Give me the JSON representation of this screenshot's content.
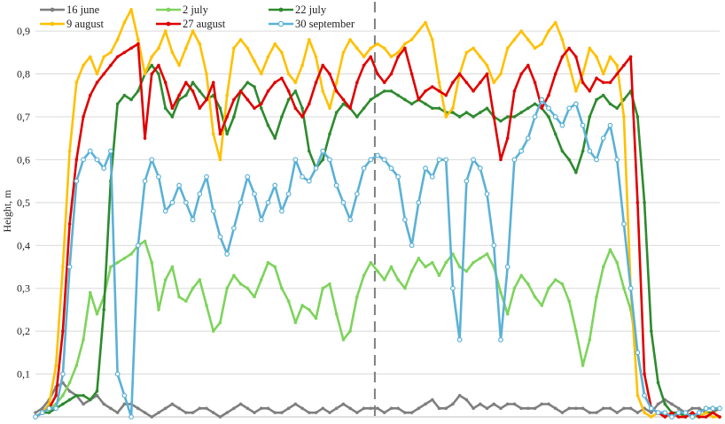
{
  "chart_data": {
    "type": "line",
    "ylabel": "Height, m",
    "xlabel": "",
    "title": "",
    "ylim": [
      0,
      0.96
    ],
    "y_ticks": [
      "0,1",
      "0,2",
      "0,3",
      "0,4",
      "0,5",
      "0,6",
      "0,7",
      "0,8",
      "0,9"
    ],
    "y_tick_values": [
      0.1,
      0.2,
      0.3,
      0.4,
      0.5,
      0.6,
      0.7,
      0.8,
      0.9
    ],
    "x_range": [
      0,
      100
    ],
    "grid": "horizontal",
    "legend_position": "top-left",
    "divider_x": 49.6,
    "series": [
      {
        "name": "16 june",
        "color": "#7f7f7f",
        "marker": "dot",
        "x": [
          0,
          1,
          2,
          3,
          4,
          5,
          6,
          7,
          8,
          9,
          10,
          11,
          12,
          13,
          14,
          15,
          16,
          17,
          18,
          19,
          20,
          21,
          22,
          23,
          24,
          25,
          26,
          27,
          28,
          29,
          30,
          31,
          32,
          33,
          34,
          35,
          36,
          37,
          38,
          39,
          40,
          41,
          42,
          43,
          44,
          45,
          46,
          47,
          48,
          49,
          50,
          51,
          52,
          53,
          54,
          55,
          56,
          57,
          58,
          59,
          60,
          61,
          62,
          63,
          64,
          65,
          66,
          67,
          68,
          69,
          70,
          71,
          72,
          73,
          74,
          75,
          76,
          77,
          78,
          79,
          80,
          81,
          82,
          83,
          84,
          85,
          86,
          87,
          88,
          89,
          90,
          91,
          92,
          93,
          94,
          95,
          96,
          97,
          98,
          99,
          100
        ],
        "values": [
          0.01,
          0.02,
          0.04,
          0.07,
          0.08,
          0.06,
          0.05,
          0.03,
          0.04,
          0.05,
          0.03,
          0.02,
          0.01,
          0.03,
          0.03,
          0.02,
          0.01,
          0.0,
          0.01,
          0.02,
          0.03,
          0.02,
          0.01,
          0.01,
          0.02,
          0.02,
          0.01,
          0.0,
          0.01,
          0.02,
          0.03,
          0.02,
          0.01,
          0.02,
          0.02,
          0.01,
          0.01,
          0.02,
          0.03,
          0.02,
          0.01,
          0.01,
          0.02,
          0.01,
          0.02,
          0.03,
          0.02,
          0.01,
          0.02,
          0.02,
          0.02,
          0.01,
          0.02,
          0.02,
          0.01,
          0.01,
          0.02,
          0.03,
          0.04,
          0.02,
          0.02,
          0.03,
          0.05,
          0.04,
          0.02,
          0.03,
          0.02,
          0.03,
          0.02,
          0.03,
          0.03,
          0.02,
          0.02,
          0.02,
          0.03,
          0.03,
          0.02,
          0.01,
          0.02,
          0.02,
          0.02,
          0.01,
          0.01,
          0.02,
          0.02,
          0.01,
          0.02,
          0.02,
          0.01,
          0.02,
          0.01,
          0.03,
          0.04,
          0.03,
          0.02,
          0.01,
          0.02,
          0.02,
          0.01,
          0.01,
          0.02
        ]
      },
      {
        "name": "2 july",
        "color": "#7ed35c",
        "marker": "dot",
        "x": [
          0,
          1,
          2,
          3,
          4,
          5,
          6,
          7,
          8,
          9,
          10,
          11,
          12,
          13,
          14,
          15,
          16,
          17,
          18,
          19,
          20,
          21,
          22,
          23,
          24,
          25,
          26,
          27,
          28,
          29,
          30,
          31,
          32,
          33,
          34,
          35,
          36,
          37,
          38,
          39,
          40,
          41,
          42,
          43,
          44,
          45,
          46,
          47,
          48,
          49,
          50,
          51,
          52,
          53,
          54,
          55,
          56,
          57,
          58,
          59,
          60,
          61,
          62,
          63,
          64,
          65,
          66,
          67,
          68,
          69,
          70,
          71,
          72,
          73,
          74,
          75,
          76,
          77,
          78,
          79,
          80,
          81,
          82,
          83,
          84,
          85,
          86,
          87,
          88,
          89,
          90,
          91,
          92,
          93,
          94,
          95,
          96,
          97,
          98,
          99,
          100
        ],
        "values": [
          0.0,
          0.01,
          0.02,
          0.03,
          0.05,
          0.08,
          0.12,
          0.18,
          0.29,
          0.24,
          0.28,
          0.35,
          0.36,
          0.37,
          0.38,
          0.4,
          0.41,
          0.36,
          0.25,
          0.32,
          0.35,
          0.28,
          0.27,
          0.3,
          0.32,
          0.26,
          0.2,
          0.22,
          0.3,
          0.33,
          0.31,
          0.3,
          0.28,
          0.32,
          0.36,
          0.35,
          0.3,
          0.27,
          0.22,
          0.26,
          0.25,
          0.23,
          0.3,
          0.31,
          0.24,
          0.18,
          0.2,
          0.28,
          0.33,
          0.36,
          0.34,
          0.32,
          0.35,
          0.32,
          0.3,
          0.34,
          0.37,
          0.35,
          0.36,
          0.33,
          0.36,
          0.38,
          0.35,
          0.34,
          0.36,
          0.37,
          0.38,
          0.35,
          0.29,
          0.24,
          0.3,
          0.33,
          0.31,
          0.28,
          0.26,
          0.3,
          0.32,
          0.31,
          0.27,
          0.2,
          0.12,
          0.18,
          0.28,
          0.35,
          0.39,
          0.36,
          0.3,
          0.25,
          0.15,
          0.05,
          0.02,
          0.01,
          0.01,
          0.0,
          0.01,
          0.01,
          0.0,
          0.0,
          0.01,
          0.01,
          0.0
        ]
      },
      {
        "name": "22 july",
        "color": "#2e8a2e",
        "marker": "dot",
        "x": [
          0,
          1,
          2,
          3,
          4,
          5,
          6,
          7,
          8,
          9,
          10,
          11,
          12,
          13,
          14,
          15,
          16,
          17,
          18,
          19,
          20,
          21,
          22,
          23,
          24,
          25,
          26,
          27,
          28,
          29,
          30,
          31,
          32,
          33,
          34,
          35,
          36,
          37,
          38,
          39,
          40,
          41,
          42,
          43,
          44,
          45,
          46,
          47,
          48,
          49,
          50,
          51,
          52,
          53,
          54,
          55,
          56,
          57,
          58,
          59,
          60,
          61,
          62,
          63,
          64,
          65,
          66,
          67,
          68,
          69,
          70,
          71,
          72,
          73,
          74,
          75,
          76,
          77,
          78,
          79,
          80,
          81,
          82,
          83,
          84,
          85,
          86,
          87,
          88,
          89,
          90,
          91,
          92,
          93,
          94,
          95,
          96,
          97,
          98,
          99,
          100
        ],
        "values": [
          0.0,
          0.01,
          0.01,
          0.02,
          0.03,
          0.04,
          0.05,
          0.05,
          0.04,
          0.06,
          0.25,
          0.55,
          0.73,
          0.75,
          0.74,
          0.76,
          0.8,
          0.82,
          0.8,
          0.72,
          0.7,
          0.74,
          0.75,
          0.78,
          0.76,
          0.74,
          0.75,
          0.72,
          0.66,
          0.7,
          0.76,
          0.78,
          0.77,
          0.72,
          0.68,
          0.65,
          0.7,
          0.74,
          0.76,
          0.72,
          0.62,
          0.58,
          0.6,
          0.66,
          0.71,
          0.73,
          0.72,
          0.7,
          0.72,
          0.74,
          0.75,
          0.76,
          0.76,
          0.75,
          0.74,
          0.73,
          0.74,
          0.73,
          0.72,
          0.72,
          0.71,
          0.71,
          0.7,
          0.71,
          0.7,
          0.71,
          0.72,
          0.7,
          0.69,
          0.7,
          0.7,
          0.71,
          0.72,
          0.73,
          0.72,
          0.7,
          0.66,
          0.62,
          0.6,
          0.57,
          0.62,
          0.7,
          0.74,
          0.75,
          0.73,
          0.72,
          0.74,
          0.76,
          0.7,
          0.5,
          0.2,
          0.08,
          0.03,
          0.01,
          0.01,
          0.0,
          0.01,
          0.0,
          0.01,
          0.01,
          0.0
        ]
      },
      {
        "name": "9 august",
        "color": "#ffc000",
        "marker": "dot",
        "x": [
          0,
          1,
          2,
          3,
          4,
          5,
          6,
          7,
          8,
          9,
          10,
          11,
          12,
          13,
          14,
          15,
          16,
          17,
          18,
          19,
          20,
          21,
          22,
          23,
          24,
          25,
          26,
          27,
          28,
          29,
          30,
          31,
          32,
          33,
          34,
          35,
          36,
          37,
          38,
          39,
          40,
          41,
          42,
          43,
          44,
          45,
          46,
          47,
          48,
          49,
          50,
          51,
          52,
          53,
          54,
          55,
          56,
          57,
          58,
          59,
          60,
          61,
          62,
          63,
          64,
          65,
          66,
          67,
          68,
          69,
          70,
          71,
          72,
          73,
          74,
          75,
          76,
          77,
          78,
          79,
          80,
          81,
          82,
          83,
          84,
          85,
          86,
          87,
          88,
          89,
          90,
          91,
          92,
          93,
          94,
          95,
          96,
          97,
          98,
          99,
          100
        ],
        "values": [
          0.0,
          0.01,
          0.03,
          0.12,
          0.35,
          0.62,
          0.78,
          0.82,
          0.84,
          0.8,
          0.84,
          0.85,
          0.88,
          0.92,
          0.95,
          0.88,
          0.8,
          0.84,
          0.86,
          0.9,
          0.85,
          0.82,
          0.86,
          0.9,
          0.87,
          0.8,
          0.66,
          0.6,
          0.75,
          0.86,
          0.88,
          0.86,
          0.83,
          0.8,
          0.84,
          0.87,
          0.85,
          0.8,
          0.78,
          0.82,
          0.88,
          0.84,
          0.76,
          0.72,
          0.78,
          0.85,
          0.88,
          0.86,
          0.84,
          0.86,
          0.87,
          0.86,
          0.84,
          0.85,
          0.87,
          0.88,
          0.9,
          0.92,
          0.88,
          0.78,
          0.7,
          0.72,
          0.8,
          0.85,
          0.86,
          0.84,
          0.82,
          0.78,
          0.8,
          0.86,
          0.88,
          0.9,
          0.88,
          0.86,
          0.87,
          0.9,
          0.92,
          0.88,
          0.82,
          0.76,
          0.8,
          0.86,
          0.84,
          0.8,
          0.84,
          0.82,
          0.7,
          0.3,
          0.05,
          0.01,
          0.0,
          0.01,
          0.0,
          0.01,
          0.0,
          0.0,
          0.01,
          0.0,
          0.01,
          0.0,
          0.0
        ]
      },
      {
        "name": "27 august",
        "color": "#e00000",
        "marker": "dot",
        "x": [
          0,
          1,
          2,
          3,
          4,
          5,
          6,
          7,
          8,
          9,
          10,
          11,
          12,
          13,
          14,
          15,
          16,
          17,
          18,
          19,
          20,
          21,
          22,
          23,
          24,
          25,
          26,
          27,
          28,
          29,
          30,
          31,
          32,
          33,
          34,
          35,
          36,
          37,
          38,
          39,
          40,
          41,
          42,
          43,
          44,
          45,
          46,
          47,
          48,
          49,
          50,
          51,
          52,
          53,
          54,
          55,
          56,
          57,
          58,
          59,
          60,
          61,
          62,
          63,
          64,
          65,
          66,
          67,
          68,
          69,
          70,
          71,
          72,
          73,
          74,
          75,
          76,
          77,
          78,
          79,
          80,
          81,
          82,
          83,
          84,
          85,
          86,
          87,
          88,
          89,
          90,
          91,
          92,
          93,
          94,
          95,
          96,
          97,
          98,
          99,
          100
        ],
        "values": [
          0.0,
          0.01,
          0.02,
          0.05,
          0.2,
          0.45,
          0.6,
          0.7,
          0.75,
          0.78,
          0.8,
          0.82,
          0.84,
          0.85,
          0.86,
          0.87,
          0.65,
          0.8,
          0.82,
          0.78,
          0.72,
          0.75,
          0.78,
          0.76,
          0.72,
          0.74,
          0.78,
          0.66,
          0.7,
          0.74,
          0.76,
          0.74,
          0.72,
          0.73,
          0.76,
          0.78,
          0.79,
          0.76,
          0.72,
          0.7,
          0.73,
          0.78,
          0.82,
          0.8,
          0.76,
          0.74,
          0.72,
          0.78,
          0.82,
          0.84,
          0.8,
          0.78,
          0.8,
          0.84,
          0.86,
          0.8,
          0.74,
          0.76,
          0.77,
          0.76,
          0.75,
          0.78,
          0.8,
          0.78,
          0.76,
          0.78,
          0.8,
          0.7,
          0.6,
          0.65,
          0.76,
          0.8,
          0.82,
          0.78,
          0.72,
          0.75,
          0.8,
          0.84,
          0.86,
          0.84,
          0.78,
          0.76,
          0.79,
          0.78,
          0.78,
          0.8,
          0.82,
          0.84,
          0.5,
          0.1,
          0.02,
          0.01,
          0.0,
          0.01,
          0.0,
          0.0,
          0.01,
          0.0,
          0.0,
          0.01,
          0.0
        ]
      },
      {
        "name": "30 september",
        "color": "#5bb1d6",
        "marker": "circle",
        "x": [
          0,
          1,
          2,
          3,
          4,
          5,
          6,
          7,
          8,
          9,
          10,
          11,
          12,
          13,
          14,
          15,
          16,
          17,
          18,
          19,
          20,
          21,
          22,
          23,
          24,
          25,
          26,
          27,
          28,
          29,
          30,
          31,
          32,
          33,
          34,
          35,
          36,
          37,
          38,
          39,
          40,
          41,
          42,
          43,
          44,
          45,
          46,
          47,
          48,
          49,
          50,
          51,
          52,
          53,
          54,
          55,
          56,
          57,
          58,
          59,
          60,
          61,
          62,
          63,
          64,
          65,
          66,
          67,
          68,
          69,
          70,
          71,
          72,
          73,
          74,
          75,
          76,
          77,
          78,
          79,
          80,
          81,
          82,
          83,
          84,
          85,
          86,
          87,
          88,
          89,
          90,
          91,
          92,
          93,
          94,
          95,
          96,
          97,
          98,
          99,
          100
        ],
        "values": [
          0.0,
          0.01,
          0.02,
          0.02,
          0.1,
          0.35,
          0.55,
          0.6,
          0.62,
          0.6,
          0.58,
          0.62,
          0.1,
          0.05,
          0.0,
          0.4,
          0.55,
          0.6,
          0.56,
          0.48,
          0.5,
          0.54,
          0.5,
          0.46,
          0.52,
          0.56,
          0.48,
          0.42,
          0.38,
          0.44,
          0.5,
          0.56,
          0.52,
          0.46,
          0.5,
          0.54,
          0.48,
          0.52,
          0.6,
          0.56,
          0.55,
          0.58,
          0.62,
          0.6,
          0.54,
          0.5,
          0.46,
          0.52,
          0.58,
          0.6,
          0.61,
          0.6,
          0.58,
          0.56,
          0.46,
          0.4,
          0.5,
          0.58,
          0.56,
          0.6,
          0.6,
          0.3,
          0.18,
          0.55,
          0.6,
          0.58,
          0.52,
          0.4,
          0.18,
          0.35,
          0.6,
          0.62,
          0.65,
          0.7,
          0.74,
          0.72,
          0.7,
          0.68,
          0.72,
          0.73,
          0.68,
          0.62,
          0.6,
          0.65,
          0.68,
          0.6,
          0.45,
          0.3,
          0.15,
          0.05,
          0.02,
          0.01,
          0.01,
          0.0,
          0.01,
          0.01,
          0.0,
          0.01,
          0.02,
          0.02,
          0.02
        ]
      }
    ]
  }
}
